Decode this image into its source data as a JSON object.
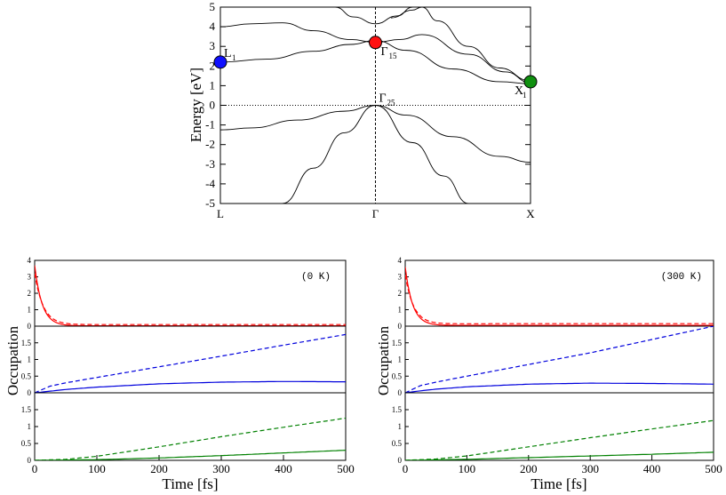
{
  "chart_data": [
    {
      "type": "line",
      "title": "",
      "xlabel": "",
      "ylabel": "Energy [eV]",
      "ylim": [
        -5,
        5
      ],
      "yticks": [
        "5",
        "4",
        "3",
        "2",
        "1",
        "0",
        "-1",
        "-2",
        "-3",
        "-4",
        "-5"
      ],
      "xtick_labels": [
        "L",
        "Γ",
        "X"
      ],
      "k_path": [
        "L",
        "Γ",
        "X"
      ],
      "bands": [
        {
          "name": "valence-1",
          "points": [
            [
              0,
              -1.25
            ],
            [
              0.1,
              -1.15
            ],
            [
              0.25,
              -0.75
            ],
            [
              0.4,
              -0.3
            ],
            [
              0.5,
              0.0
            ],
            [
              0.6,
              -0.5
            ],
            [
              0.75,
              -1.6
            ],
            [
              0.9,
              -2.6
            ],
            [
              1.0,
              -2.9
            ]
          ]
        },
        {
          "name": "valence-2",
          "points": [
            [
              0.2,
              -5.0
            ],
            [
              0.3,
              -3.2
            ],
            [
              0.4,
              -1.4
            ],
            [
              0.5,
              0.0
            ],
            [
              0.62,
              -1.9
            ],
            [
              0.72,
              -3.6
            ],
            [
              0.8,
              -5.0
            ]
          ]
        },
        {
          "name": "conduction-1",
          "points": [
            [
              0,
              2.2
            ],
            [
              0.15,
              2.35
            ],
            [
              0.3,
              2.75
            ],
            [
              0.42,
              3.1
            ],
            [
              0.5,
              3.3
            ],
            [
              0.6,
              2.8
            ],
            [
              0.75,
              1.85
            ],
            [
              0.9,
              1.2
            ],
            [
              1.0,
              1.1
            ]
          ]
        },
        {
          "name": "conduction-2",
          "points": [
            [
              0,
              4.0
            ],
            [
              0.1,
              4.15
            ],
            [
              0.2,
              4.2
            ],
            [
              0.3,
              3.8
            ],
            [
              0.42,
              3.35
            ],
            [
              0.5,
              3.2
            ],
            [
              0.58,
              3.35
            ],
            [
              0.65,
              3.6
            ],
            [
              0.8,
              2.6
            ],
            [
              0.92,
              1.7
            ],
            [
              1.0,
              1.15
            ]
          ]
        },
        {
          "name": "conduction-3",
          "points": [
            [
              0.37,
              5.0
            ],
            [
              0.43,
              4.5
            ],
            [
              0.5,
              4.15
            ],
            [
              0.57,
              4.55
            ],
            [
              0.62,
              5.0
            ]
          ]
        },
        {
          "name": "conduction-4",
          "points": [
            [
              0.55,
              4.45
            ],
            [
              0.62,
              4.85
            ],
            [
              0.65,
              5.0
            ],
            [
              0.7,
              4.3
            ],
            [
              0.8,
              3.0
            ],
            [
              0.9,
              1.9
            ],
            [
              1.0,
              1.25
            ]
          ]
        }
      ],
      "points": [
        {
          "label": "L",
          "sub": "1",
          "k": 0.0,
          "energy": 2.2,
          "color": "#1010ff"
        },
        {
          "label": "Γ",
          "sub": "15",
          "k": 0.5,
          "energy": 3.2,
          "color": "#ff1010"
        },
        {
          "label": "X",
          "sub": "1",
          "k": 1.0,
          "energy": 1.2,
          "color": "#109010"
        },
        {
          "label": "Γ",
          "sub": "25",
          "k": 0.5,
          "energy": 0.0,
          "color": ""
        }
      ]
    },
    {
      "type": "line",
      "title": "(0 K)",
      "xlabel": "Time [fs]",
      "ylabel": "Occupation",
      "xlim": [
        0,
        500
      ],
      "xticks": [
        "0",
        "100",
        "200",
        "300",
        "400",
        "500"
      ],
      "panels": [
        {
          "ylim": [
            0,
            4
          ],
          "yticks": [
            "0",
            "1",
            "2",
            "3",
            "4"
          ],
          "series": [
            {
              "name": "red-solid",
              "color": "#ff0000",
              "dashed": false,
              "tau": 12,
              "a": 3.7,
              "base": 0.02
            },
            {
              "name": "red-dashed",
              "color": "#ff0000",
              "dashed": true,
              "tau": 14,
              "a": 3.2,
              "base": 0.1
            }
          ]
        },
        {
          "ylim": [
            0,
            2
          ],
          "yticks": [
            "0",
            "0.5",
            "1",
            "1.5"
          ],
          "series": [
            {
              "name": "blue-dashed",
              "color": "#0000dd",
              "dashed": true,
              "values": [
                [
                  0,
                  0
                ],
                [
                  25,
                  0.2
                ],
                [
                  50,
                  0.3
                ],
                [
                  100,
                  0.46
                ],
                [
                  200,
                  0.78
                ],
                [
                  300,
                  1.1
                ],
                [
                  400,
                  1.43
                ],
                [
                  500,
                  1.75
                ]
              ]
            },
            {
              "name": "blue-solid",
              "color": "#0000dd",
              "dashed": false,
              "values": [
                [
                  0,
                  0
                ],
                [
                  25,
                  0.05
                ],
                [
                  50,
                  0.1
                ],
                [
                  100,
                  0.17
                ],
                [
                  200,
                  0.27
                ],
                [
                  300,
                  0.32
                ],
                [
                  400,
                  0.34
                ],
                [
                  500,
                  0.33
                ]
              ]
            }
          ]
        },
        {
          "ylim": [
            0,
            2
          ],
          "yticks": [
            "0",
            "0.5",
            "1",
            "1.5"
          ],
          "series": [
            {
              "name": "green-dashed",
              "color": "#008000",
              "dashed": true,
              "values": [
                [
                  0,
                  0
                ],
                [
                  50,
                  0.03
                ],
                [
                  100,
                  0.12
                ],
                [
                  200,
                  0.4
                ],
                [
                  300,
                  0.7
                ],
                [
                  400,
                  0.98
                ],
                [
                  500,
                  1.25
                ]
              ]
            },
            {
              "name": "green-solid",
              "color": "#008000",
              "dashed": false,
              "values": [
                [
                  0,
                  0
                ],
                [
                  100,
                  0.02
                ],
                [
                  200,
                  0.07
                ],
                [
                  300,
                  0.14
                ],
                [
                  400,
                  0.22
                ],
                [
                  500,
                  0.3
                ]
              ]
            }
          ]
        }
      ]
    },
    {
      "type": "line",
      "title": "(300 K)",
      "xlabel": "Time [fs]",
      "ylabel": "Occupation",
      "xlim": [
        0,
        500
      ],
      "xticks": [
        "0",
        "100",
        "200",
        "300",
        "400",
        "500"
      ],
      "panels": [
        {
          "ylim": [
            0,
            4
          ],
          "yticks": [
            "0",
            "1",
            "2",
            "3",
            "4"
          ],
          "series": [
            {
              "name": "red-solid",
              "color": "#ff0000",
              "dashed": false,
              "tau": 12,
              "a": 3.6,
              "base": 0.05
            },
            {
              "name": "red-dashed",
              "color": "#ff0000",
              "dashed": true,
              "tau": 14,
              "a": 3.1,
              "base": 0.15
            }
          ]
        },
        {
          "ylim": [
            0,
            2
          ],
          "yticks": [
            "0",
            "0.5",
            "1",
            "1.5"
          ],
          "series": [
            {
              "name": "blue-dashed",
              "color": "#0000dd",
              "dashed": true,
              "values": [
                [
                  0,
                  0
                ],
                [
                  25,
                  0.22
                ],
                [
                  50,
                  0.32
                ],
                [
                  100,
                  0.5
                ],
                [
                  200,
                  0.85
                ],
                [
                  300,
                  1.2
                ],
                [
                  400,
                  1.6
                ],
                [
                  500,
                  2.0
                ]
              ]
            },
            {
              "name": "blue-solid",
              "color": "#0000dd",
              "dashed": false,
              "values": [
                [
                  0,
                  0
                ],
                [
                  25,
                  0.06
                ],
                [
                  50,
                  0.11
                ],
                [
                  100,
                  0.18
                ],
                [
                  200,
                  0.26
                ],
                [
                  300,
                  0.29
                ],
                [
                  400,
                  0.28
                ],
                [
                  500,
                  0.26
                ]
              ]
            }
          ]
        },
        {
          "ylim": [
            0,
            2
          ],
          "yticks": [
            "0",
            "0.5",
            "1",
            "1.5"
          ],
          "series": [
            {
              "name": "green-dashed",
              "color": "#008000",
              "dashed": true,
              "values": [
                [
                  0,
                  0
                ],
                [
                  50,
                  0.04
                ],
                [
                  100,
                  0.13
                ],
                [
                  200,
                  0.4
                ],
                [
                  300,
                  0.67
                ],
                [
                  400,
                  0.93
                ],
                [
                  500,
                  1.18
                ]
              ]
            },
            {
              "name": "green-solid",
              "color": "#008000",
              "dashed": false,
              "values": [
                [
                  0,
                  0
                ],
                [
                  100,
                  0.03
                ],
                [
                  200,
                  0.08
                ],
                [
                  300,
                  0.13
                ],
                [
                  400,
                  0.18
                ],
                [
                  500,
                  0.24
                ]
              ]
            }
          ]
        }
      ]
    }
  ]
}
